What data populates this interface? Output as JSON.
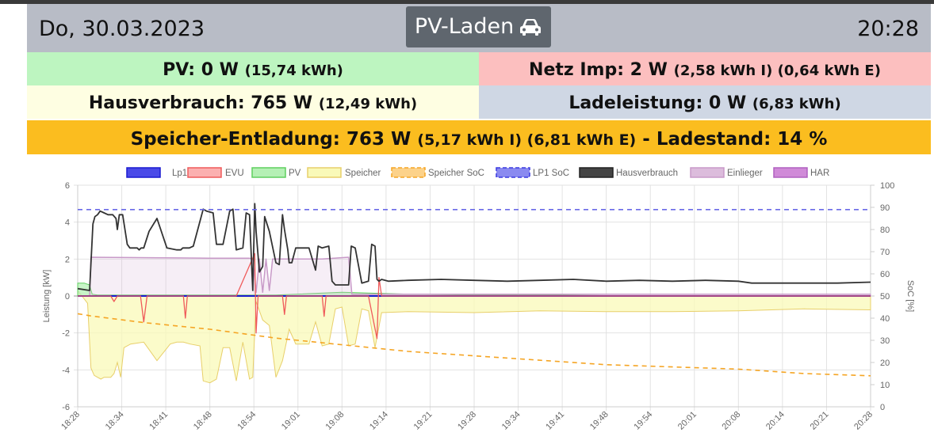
{
  "header": {
    "date": "Do, 30.03.2023",
    "mode_label": "PV-Laden",
    "mode_icon": "car-icon",
    "time": "20:28",
    "bg_color": "#b8bcc6"
  },
  "summary": {
    "pv": {
      "main": "PV: 0 W",
      "sub": "(15,74 kWh)",
      "color": "#bdf5c0"
    },
    "netz": {
      "main": "Netz Imp: 2 W",
      "sub": "(2,58 kWh I) (0,64 kWh E)",
      "color": "#fcbfbf"
    },
    "haus": {
      "main": "Hausverbrauch: 765 W",
      "sub": "(12,49 kWh)",
      "color": "#fefee2"
    },
    "lade": {
      "main": "Ladeleistung: 0 W",
      "sub": "(6,83 kWh)",
      "color": "#cfd7e4"
    },
    "speicher": {
      "main": "Speicher-Entladung: 763 W",
      "sub": "(5,17 kWh I) (6,81 kWh E)",
      "tail": "- Ladestand: 14 %",
      "color": "#fbbd1f"
    }
  },
  "chart_data": {
    "type": "line",
    "ylabel": "Leistung [kW]",
    "y2label": "SoC [%]",
    "ylim": [
      -6,
      6
    ],
    "y2lim": [
      0,
      100
    ],
    "y_ticks": [
      "6",
      "4",
      "2",
      "0",
      "-2",
      "-4",
      "-6"
    ],
    "y2_ticks": [
      "100",
      "90",
      "80",
      "70",
      "60",
      "50",
      "40",
      "30",
      "20",
      "10",
      "0"
    ],
    "x_ticks": [
      "18:28",
      "18:34",
      "18:41",
      "18:48",
      "18:54",
      "19:01",
      "19:08",
      "19:14",
      "19:21",
      "19:28",
      "19:34",
      "19:41",
      "19:48",
      "19:54",
      "20:01",
      "20:08",
      "20:14",
      "20:21",
      "20:28"
    ],
    "xlim": [
      "18:28",
      "20:28"
    ],
    "grid": true,
    "legend_position": "top",
    "legend": [
      {
        "name": "Lp1",
        "fill": "#4a4ae8",
        "stroke": "#1a1ad0",
        "dashed": false
      },
      {
        "name": "EVU",
        "fill": "#fbb0b0",
        "stroke": "#ef5a5a",
        "dashed": false
      },
      {
        "name": "PV",
        "fill": "#b5f0b5",
        "stroke": "#5fcf5f",
        "dashed": false
      },
      {
        "name": "Speicher",
        "fill": "#f9f9b8",
        "stroke": "#e8cf6a",
        "dashed": false
      },
      {
        "name": "Speicher SoC",
        "fill": "#fcd28a",
        "stroke": "#f5a524",
        "dashed": true
      },
      {
        "name": "LP1 SoC",
        "fill": "#8a8af0",
        "stroke": "#3a3ae0",
        "dashed": true
      },
      {
        "name": "Hausverbrauch",
        "fill": "#444444",
        "stroke": "#222222",
        "dashed": false
      },
      {
        "name": "Einlieger",
        "fill": "#dcbcdc",
        "stroke": "#c89ac8",
        "dashed": false
      },
      {
        "name": "HAR",
        "fill": "#d08ad8",
        "stroke": "#b060c0",
        "dashed": false
      }
    ],
    "series": [
      {
        "name": "Hausverbrauch",
        "unit": "kW",
        "color": "#333333",
        "x": [
          0,
          1.8,
          2.3,
          2.6,
          3.0,
          3.4,
          4.0,
          4.6,
          5.3,
          5.8,
          6.0,
          6.3,
          6.8,
          7.5,
          7.9,
          8.3,
          9.0,
          9.3,
          9.6,
          10.0,
          10.8,
          12.0,
          13.5,
          15.0,
          15.6,
          15.9,
          16.1,
          16.9,
          17.5,
          19.0,
          19.5,
          20.5,
          21.0,
          22.0,
          23.0,
          23.5,
          24.0,
          25.0,
          25.5,
          26.0,
          26.5,
          26.8,
          27.0,
          27.5,
          28.0,
          28.3,
          29.0,
          30.0,
          30.5,
          31.0,
          31.3,
          31.8,
          32.0,
          32.4,
          33.0,
          34.0,
          35.0,
          36.0,
          36.4,
          37.0,
          38.0,
          38.5,
          39.0,
          40.0,
          41.0,
          41.4,
          42.0,
          43.0,
          44.0,
          44.5,
          45.0,
          45.3,
          45.6,
          46.0,
          47.0,
          50.0,
          55.0,
          60.0,
          65.0,
          70.0,
          75.0,
          80.0,
          85.0,
          90.0,
          95.0,
          100.0,
          102.0,
          105.0,
          110.0,
          115.0,
          120.0
        ],
        "y": [
          0.4,
          0.3,
          3.9,
          4.3,
          4.4,
          4.6,
          4.5,
          4.4,
          4.4,
          4.2,
          3.6,
          4.4,
          4.4,
          2.8,
          2.6,
          2.6,
          2.6,
          2.5,
          2.6,
          2.6,
          3.5,
          4.2,
          2.6,
          2.5,
          2.5,
          2.6,
          2.6,
          2.6,
          2.7,
          4.7,
          4.6,
          4.5,
          2.8,
          2.8,
          4.6,
          4.7,
          2.5,
          2.6,
          4.5,
          4.4,
          0.3,
          5.0,
          3.5,
          1.3,
          1.6,
          4.3,
          3.5,
          1.8,
          1.7,
          4.4,
          3.6,
          2.5,
          1.8,
          1.8,
          2.6,
          2.6,
          2.6,
          1.4,
          2.7,
          2.6,
          2.7,
          0.8,
          0.6,
          0.6,
          0.6,
          2.7,
          2.6,
          0.7,
          0.8,
          2.8,
          2.7,
          0.9,
          0.8,
          0.9,
          0.8,
          0.85,
          0.9,
          0.85,
          0.8,
          0.85,
          0.9,
          0.8,
          0.85,
          0.8,
          0.85,
          0.8,
          0.7,
          0.7,
          0.7,
          0.7,
          0.75
        ]
      },
      {
        "name": "Speicher",
        "unit": "kW",
        "color": "#e0c050",
        "x": [
          0,
          1.5,
          2.0,
          2.5,
          3.0,
          3.5,
          4.0,
          5.0,
          5.5,
          6.0,
          6.5,
          7.0,
          8.0,
          10.0,
          12.0,
          14.0,
          15.0,
          16.0,
          17.0,
          18.5,
          19.0,
          20.0,
          21.0,
          22.0,
          23.0,
          24.0,
          25.0,
          26.0,
          26.5,
          27.0,
          28.0,
          29.0,
          30.0,
          31.0,
          32.0,
          33.0,
          34.0,
          35.0,
          36.0,
          37.0,
          38.0,
          39.0,
          40.0,
          41.0,
          42.0,
          43.0,
          44.0,
          45.0,
          46.0,
          50.0,
          60.0,
          70.0,
          80.0,
          90.0,
          100.0,
          110.0,
          120.0
        ],
        "y": [
          0.3,
          -0.4,
          -3.9,
          -4.3,
          -4.4,
          -4.5,
          -4.4,
          -4.4,
          -4.2,
          -3.6,
          -4.4,
          -2.8,
          -2.6,
          -2.5,
          -3.5,
          -2.6,
          -2.5,
          -2.5,
          -2.6,
          -2.7,
          -4.6,
          -4.7,
          -4.5,
          -2.8,
          -2.8,
          -4.6,
          -2.5,
          -4.5,
          -4.4,
          -0.3,
          -1.3,
          -1.6,
          -4.4,
          -3.5,
          -1.8,
          -2.6,
          -2.6,
          -2.6,
          -1.4,
          -2.7,
          -2.6,
          -0.7,
          -0.6,
          -2.7,
          -2.6,
          -0.7,
          -0.8,
          -2.8,
          -0.9,
          -0.85,
          -0.9,
          -0.8,
          -0.85,
          -0.85,
          -0.8,
          -0.7,
          -0.75
        ]
      },
      {
        "name": "PV",
        "unit": "kW",
        "color": "#5fcf5f",
        "x": [
          0,
          1,
          1.8,
          2.2,
          3,
          5,
          10,
          20,
          30,
          40,
          45,
          50,
          60,
          70,
          80,
          90,
          100,
          110,
          120
        ],
        "y": [
          0.7,
          0.7,
          0.6,
          0.1,
          0.05,
          0.05,
          0.05,
          0.05,
          0.05,
          0.2,
          0.15,
          0.1,
          0.05,
          0.05,
          0.02,
          0.02,
          0.0,
          0.0,
          0.0
        ]
      },
      {
        "name": "EVU",
        "unit": "kW",
        "color": "#ef5a5a",
        "x": [
          0,
          5,
          5.5,
          6,
          9.5,
          10,
          10.5,
          16,
          16.3,
          16.6,
          24,
          26.8,
          27,
          27.3,
          31,
          31.3,
          31.6,
          37,
          37.3,
          37.6,
          44,
          45.3,
          45.6,
          46,
          60,
          120
        ],
        "y": [
          0,
          0,
          -0.3,
          0,
          0,
          -1.4,
          0,
          0,
          -1.2,
          0,
          0,
          2.3,
          -2.0,
          0,
          0,
          -1.0,
          0,
          0,
          -1.1,
          0,
          0,
          -2.3,
          1.0,
          0,
          0,
          0
        ]
      },
      {
        "name": "Einlieger",
        "unit": "kW",
        "color": "#c89ac8",
        "x": [
          0,
          1.8,
          2.0,
          20.0,
          26.0,
          26.5,
          27.0,
          27.5,
          28.0,
          28.5,
          29.0,
          29.5,
          30.5,
          31.0,
          36.0,
          37.0,
          41.0,
          41.5,
          120
        ],
        "y": [
          0,
          0,
          2.1,
          2.05,
          2.05,
          2.0,
          0.2,
          2.0,
          0.2,
          2.0,
          0.3,
          2.0,
          2.0,
          2.0,
          2.0,
          2.0,
          2.1,
          0.1,
          0.1
        ]
      },
      {
        "name": "Lp1",
        "unit": "kW",
        "color": "#1a1ad0",
        "x": [
          0,
          120
        ],
        "y": [
          0,
          0
        ]
      },
      {
        "name": "LP1 SoC",
        "unit": "%",
        "color": "#6a6ae8",
        "x": [
          0,
          120
        ],
        "y": [
          89,
          89
        ]
      },
      {
        "name": "Speicher SoC",
        "unit": "%",
        "color": "#f5a524",
        "x": [
          0,
          2,
          10,
          20,
          30,
          40,
          50,
          60,
          70,
          80,
          90,
          100,
          110,
          120
        ],
        "y": [
          42,
          41,
          38,
          35,
          31,
          28,
          25,
          23,
          21,
          19,
          18,
          17,
          15,
          14
        ]
      }
    ]
  }
}
